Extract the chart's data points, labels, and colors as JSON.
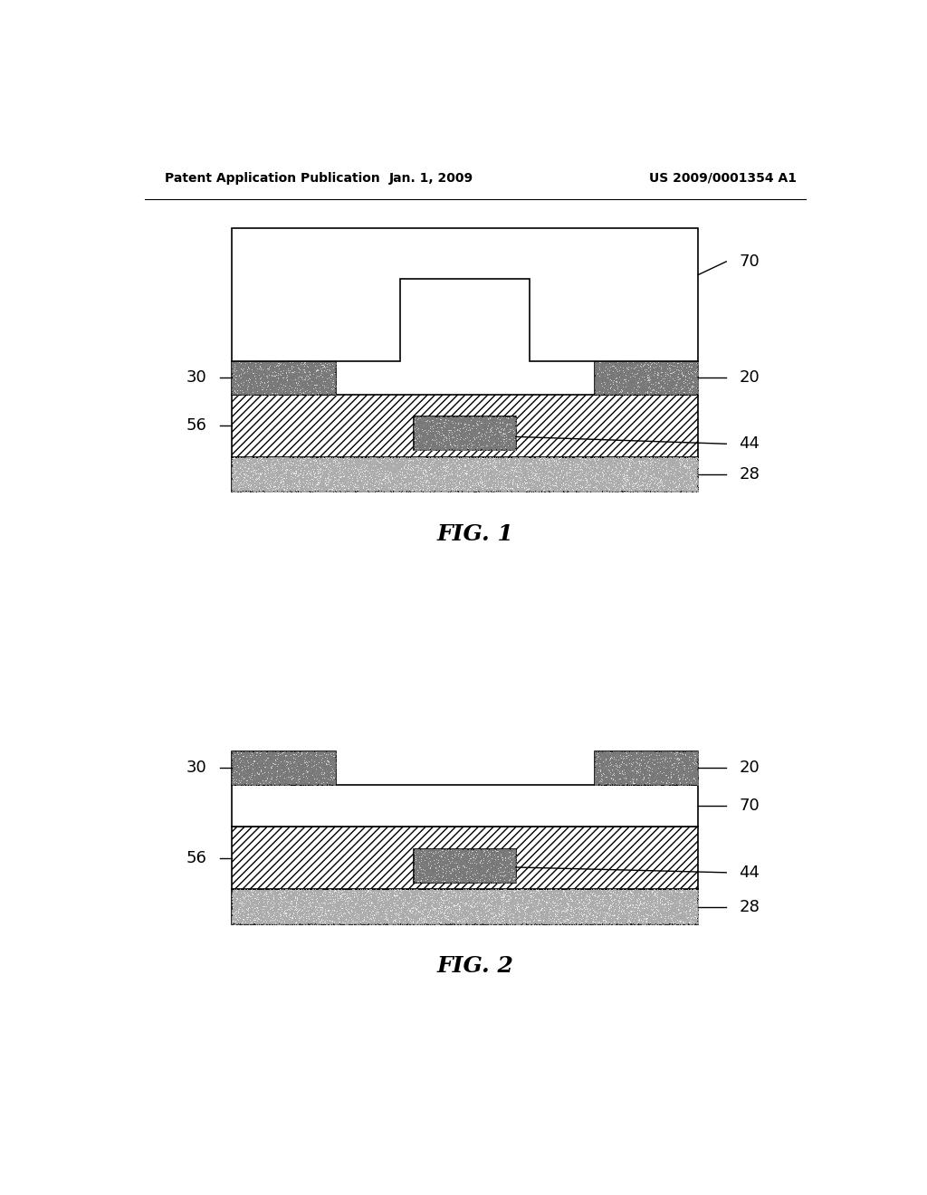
{
  "header_left": "Patent Application Publication",
  "header_center": "Jan. 1, 2009",
  "header_right": "US 2009/0001354 A1",
  "fig1_label": "FIG. 1",
  "fig2_label": "FIG. 2",
  "background_color": "#ffffff",
  "line_color": "#000000",
  "stipple_dark": "#888888",
  "stipple_light": "#bbbbbb",
  "hatch_pattern": "////",
  "lw": 1.2
}
